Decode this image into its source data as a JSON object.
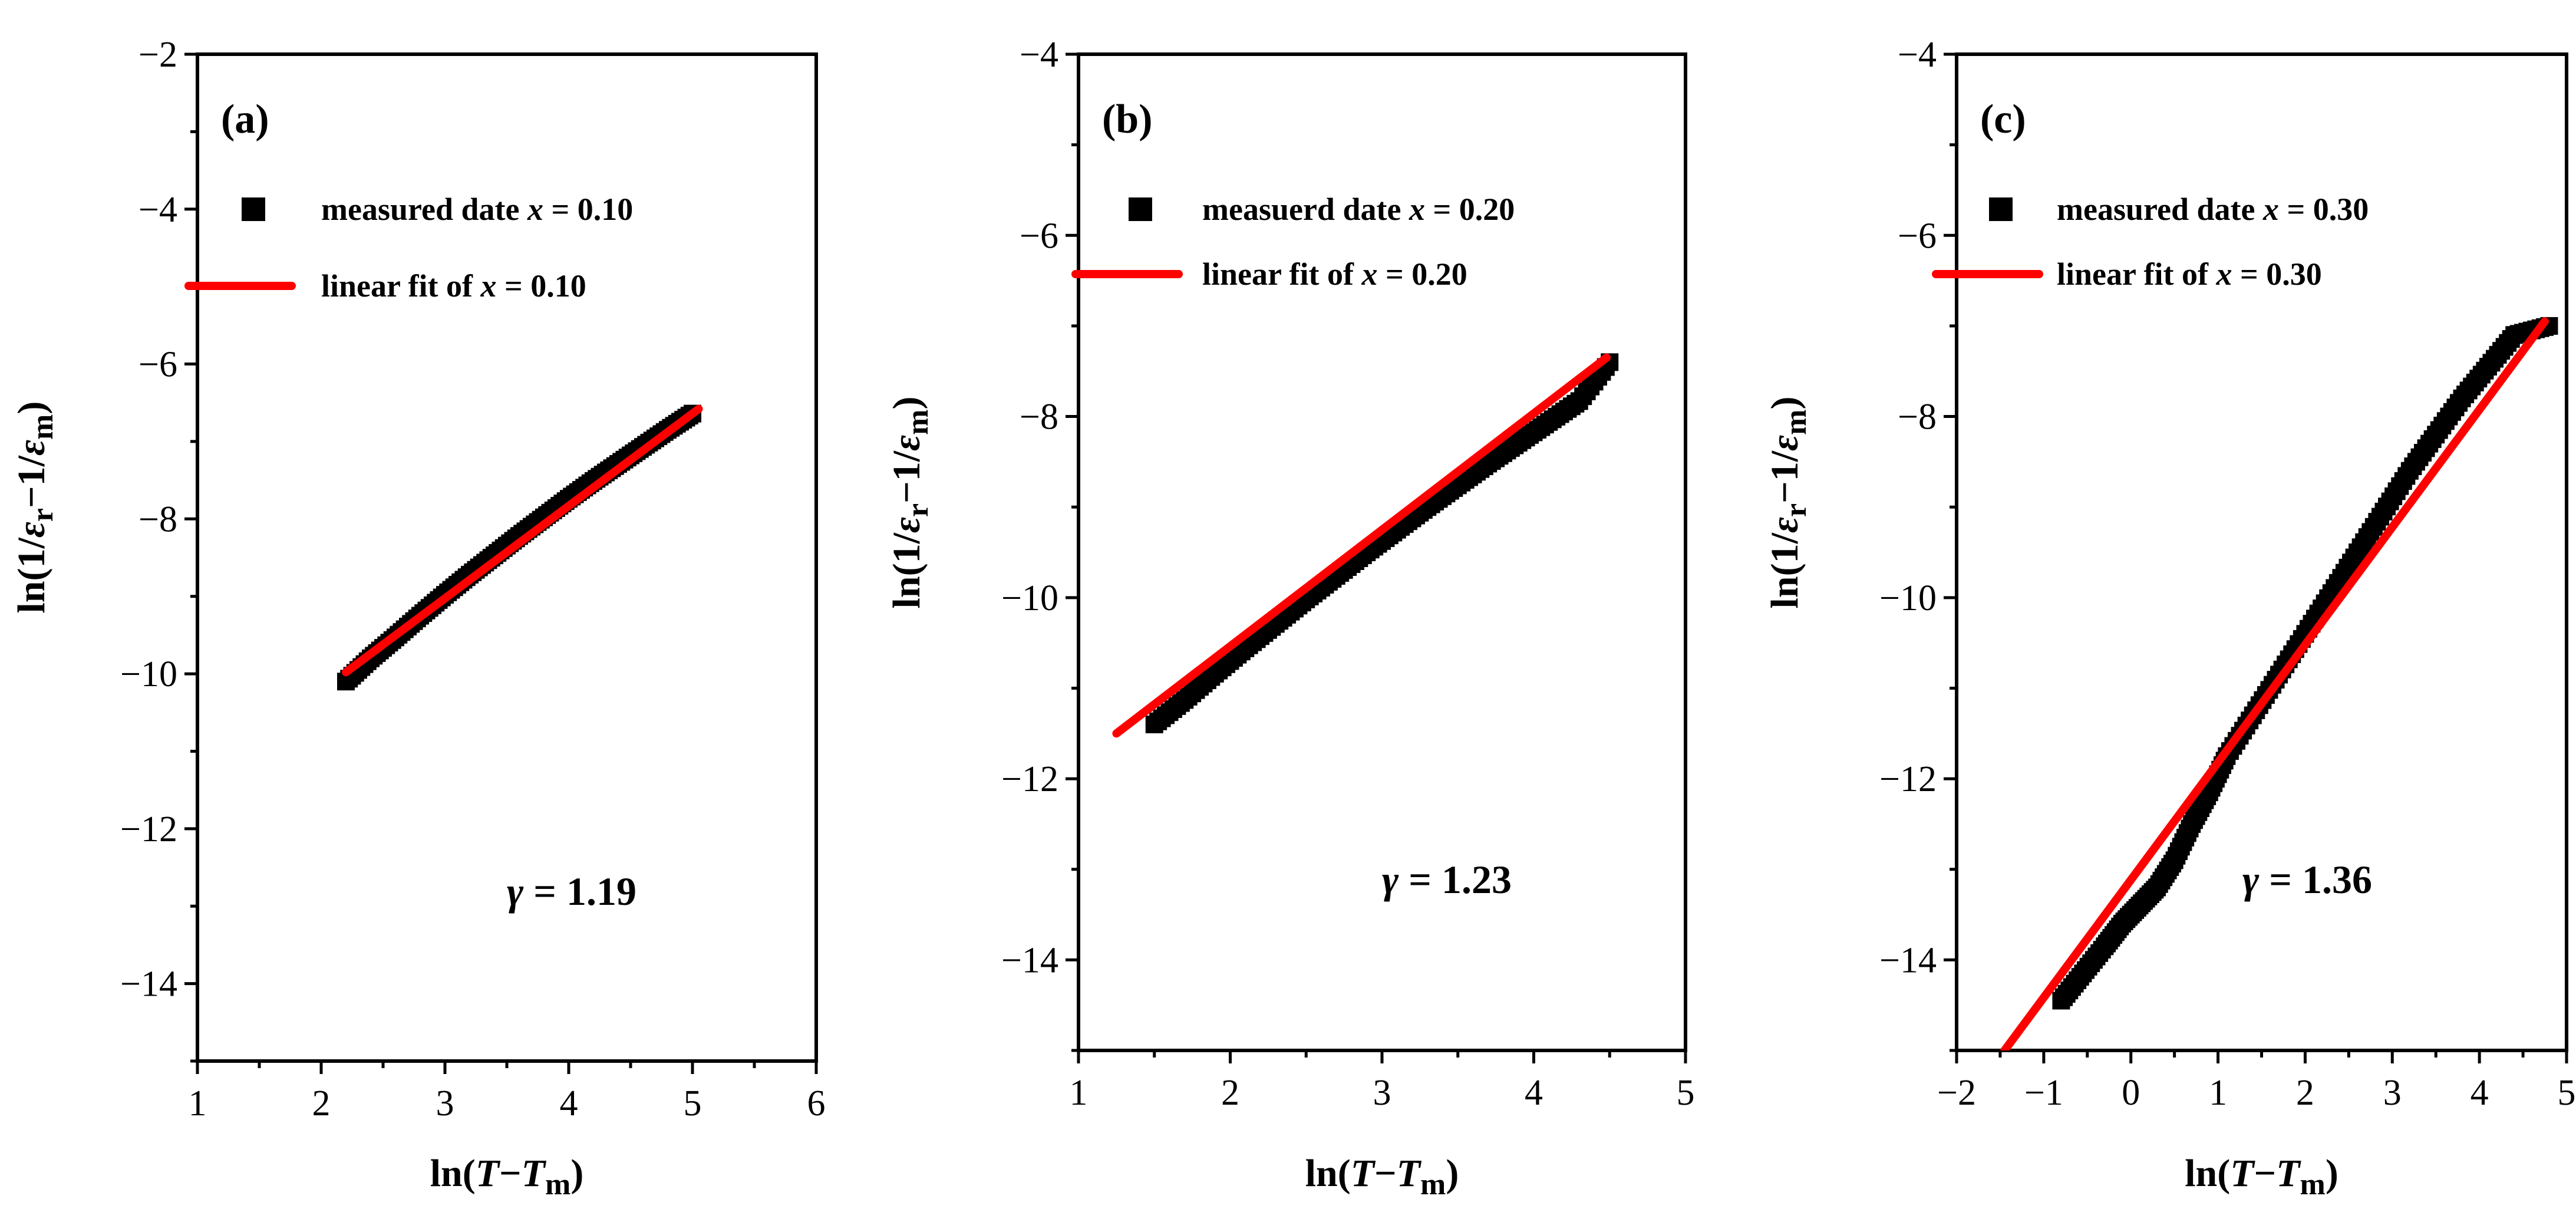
{
  "chart_data": [
    {
      "type": "scatter",
      "panel_label": "(a)",
      "xlabel": "ln(T−Tm)",
      "ylabel": "ln(1/εr−1/εm)",
      "xlim": [
        1,
        6
      ],
      "ylim": [
        -15,
        -2
      ],
      "x_ticks": [
        1,
        2,
        3,
        4,
        5,
        6
      ],
      "y_ticks": [
        -14,
        -12,
        -10,
        -8,
        -6,
        -4,
        -2
      ],
      "legend": [
        "measured date x = 0.10",
        "linear fit of x = 0.10"
      ],
      "gamma_text": "γ = 1.19",
      "series": [
        {
          "name": "measured date x = 0.10",
          "kind": "scatter",
          "x": [
            2.2,
            2.4,
            2.6,
            2.8,
            3.0,
            3.2,
            3.4,
            3.6,
            3.8,
            4.0,
            4.2,
            4.4,
            4.6,
            4.8,
            5.0
          ],
          "y": [
            -10.1,
            -9.8,
            -9.53,
            -9.25,
            -8.98,
            -8.72,
            -8.47,
            -8.22,
            -7.98,
            -7.74,
            -7.51,
            -7.29,
            -7.07,
            -6.85,
            -6.64
          ]
        },
        {
          "name": "linear fit of x = 0.10",
          "kind": "line",
          "x": [
            2.2,
            5.05
          ],
          "y": [
            -9.98,
            -6.58
          ]
        }
      ]
    },
    {
      "type": "scatter",
      "panel_label": "(b)",
      "xlabel": "ln(T−Tm)",
      "ylabel": "ln(1/εr−1/εm)",
      "xlim": [
        1,
        5
      ],
      "ylim": [
        -15,
        -4
      ],
      "x_ticks": [
        1,
        2,
        3,
        4,
        5
      ],
      "y_ticks": [
        -14,
        -12,
        -10,
        -8,
        -6,
        -4
      ],
      "legend": [
        "measuerd date x = 0.20",
        "linear fit of x = 0.20"
      ],
      "gamma_text": "γ = 1.23",
      "series": [
        {
          "name": "measuerd date x = 0.20",
          "kind": "scatter",
          "x": [
            1.5,
            1.7,
            1.9,
            2.1,
            2.3,
            2.5,
            2.7,
            2.9,
            3.1,
            3.3,
            3.5,
            3.7,
            3.9,
            4.1,
            4.3,
            4.5
          ],
          "y": [
            -11.4,
            -11.13,
            -10.84,
            -10.56,
            -10.29,
            -10.02,
            -9.76,
            -9.5,
            -9.25,
            -9.0,
            -8.76,
            -8.52,
            -8.29,
            -8.06,
            -7.83,
            -7.4
          ]
        },
        {
          "name": "linear fit of x = 0.20",
          "kind": "line",
          "x": [
            1.25,
            4.48
          ],
          "y": [
            -11.5,
            -7.35
          ]
        }
      ]
    },
    {
      "type": "scatter",
      "panel_label": "(c)",
      "xlabel": "ln(T−Tm)",
      "ylabel": "ln(1/εr−1/εm)",
      "xlim": [
        -2,
        5
      ],
      "ylim": [
        -15,
        -4
      ],
      "x_ticks": [
        -2,
        -1,
        0,
        1,
        2,
        3,
        4,
        5
      ],
      "y_ticks": [
        -14,
        -12,
        -10,
        -8,
        -6,
        -4
      ],
      "legend": [
        "measured date x = 0.30",
        "linear fit of x = 0.30"
      ],
      "gamma_text": "γ = 1.36",
      "series": [
        {
          "name": "measured date x = 0.30",
          "kind": "scatter",
          "x": [
            -0.8,
            -0.55,
            -0.3,
            -0.1,
            0.1,
            0.3,
            0.5,
            0.7,
            0.9,
            1.1,
            1.4,
            1.7,
            2.0,
            2.3,
            2.6,
            2.9,
            3.2,
            3.5,
            3.8,
            4.1,
            4.4,
            4.8
          ],
          "y": [
            -14.45,
            -14.15,
            -13.85,
            -13.6,
            -13.4,
            -13.2,
            -12.9,
            -12.5,
            -12.15,
            -11.75,
            -11.3,
            -10.85,
            -10.4,
            -9.95,
            -9.5,
            -9.05,
            -8.6,
            -8.2,
            -7.8,
            -7.45,
            -7.1,
            -7.0
          ]
        },
        {
          "name": "linear fit of x = 0.30",
          "kind": "line",
          "x": [
            -1.45,
            4.75
          ],
          "y": [
            -15.0,
            -6.95
          ]
        }
      ]
    }
  ]
}
